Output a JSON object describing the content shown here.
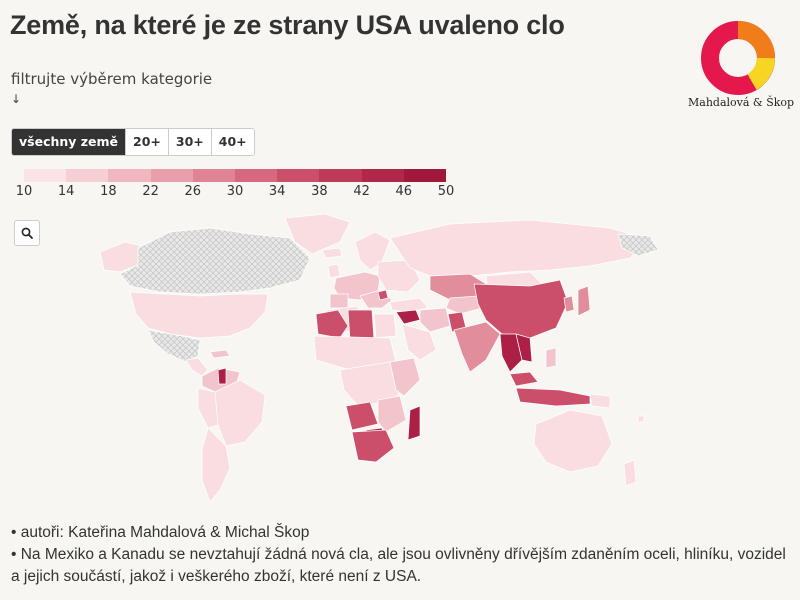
{
  "title": "Země, na které je ze strany USA uvaleno clo",
  "logo": {
    "text": "Mahdalová & Škop",
    "colors": [
      "#e5184e",
      "#f07d1a",
      "#f6d623"
    ]
  },
  "filter": {
    "label": "filtrujte výběrem kategorie",
    "arrow": "↓",
    "buttons": [
      {
        "label": "všechny země",
        "active": true
      },
      {
        "label": "20+",
        "active": false
      },
      {
        "label": "30+",
        "active": false
      },
      {
        "label": "40+",
        "active": false
      }
    ]
  },
  "legend": {
    "ticks": [
      "10",
      "14",
      "18",
      "22",
      "26",
      "30",
      "34",
      "38",
      "42",
      "46",
      "50"
    ],
    "colors": [
      "#fbe4e7",
      "#f6cfd5",
      "#f0b7c0",
      "#e99fab",
      "#e08494",
      "#d6697d",
      "#ca5069",
      "#bd3a58",
      "#b02849",
      "#a0183c"
    ]
  },
  "zoom": {
    "icon": "search-icon"
  },
  "map": {
    "colors": {
      "no_data": "#dcdcdc",
      "base": "#f9dde1",
      "low": "#f2c4cb",
      "mid": "#e28d9c",
      "high": "#cb4f6a",
      "top": "#ad2045"
    }
  },
  "footnotes": [
    "• autoři: Kateřina Mahdalová & Michal Škop",
    "• Na Mexiko a Kanadu se nevztahují žádná nová cla, ale jsou ovlivněny dřívějším zdaněním oceli, hliníku, vozidel a jejich součástí, jakož i veškerého zboží, které není z USA."
  ]
}
